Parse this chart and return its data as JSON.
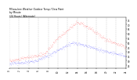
{
  "title_line1": "Milwaukee Weather Outdoor Temp / Dew Point",
  "title_line2": "by Minute",
  "title_line3": "(24 Hours) (Alternate)",
  "ylim": [
    22,
    78
  ],
  "xlim": [
    0,
    1440
  ],
  "temp_color": "#ff0000",
  "dew_color": "#0000ff",
  "bg_color": "#ffffff",
  "grid_color": "#aaaaaa",
  "title_color": "#000000",
  "n_minutes": 1440,
  "yticks": [
    25,
    30,
    35,
    40,
    45,
    50,
    55,
    60,
    65,
    70,
    75
  ],
  "xtick_step": 120
}
